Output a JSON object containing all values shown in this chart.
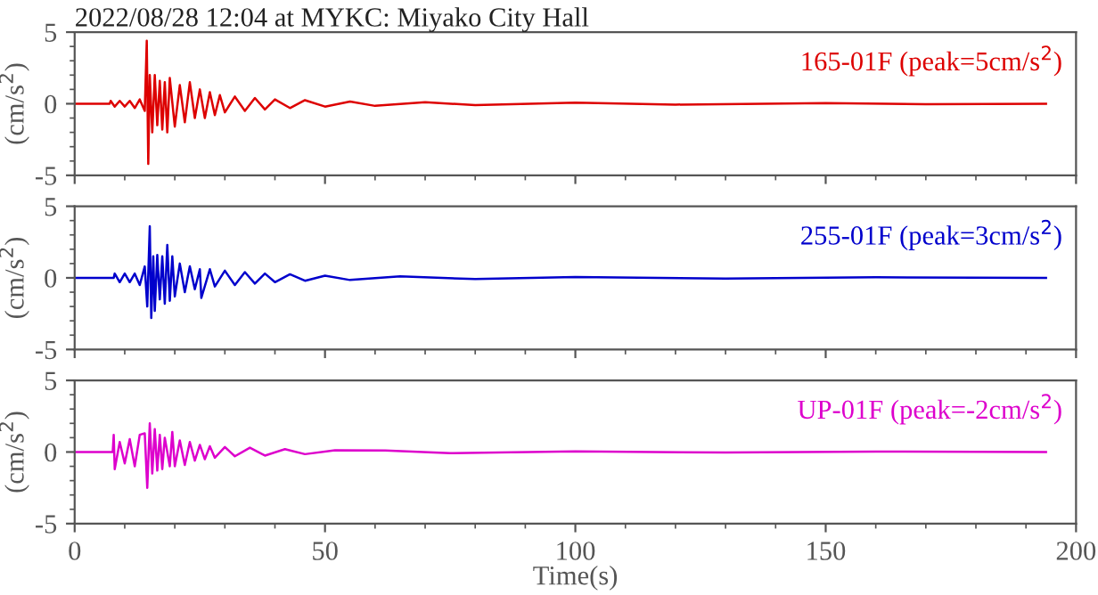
{
  "chart_data": [
    {
      "type": "line",
      "title": "2022/08/28 12:04 at MYKC: Miyako City Hall",
      "ylabel": "(cm/s$^{2}$)",
      "xlim": [
        0,
        200
      ],
      "xticks": [
        0,
        50,
        100,
        150,
        200
      ],
      "ylim": [
        -5,
        5
      ],
      "yticks": [
        -5,
        0,
        5
      ],
      "tick_labels": "y",
      "legend": "top right",
      "marker": "none",
      "line_style": "solid",
      "series": [
        {
          "name": "165-01F (peak=5cm/s$^{2}$)",
          "color": "#dd0000",
          "x": [
            0,
            7,
            7.2,
            8,
            9,
            10,
            11,
            12,
            13,
            14,
            14.4,
            14.7,
            15,
            15.5,
            16,
            16.5,
            17,
            17.5,
            18,
            18.5,
            19,
            20,
            21,
            22,
            23,
            24,
            25,
            26,
            27,
            28,
            29,
            30,
            32,
            34,
            36,
            38,
            40,
            43,
            46,
            50,
            55,
            60,
            70,
            80,
            100,
            120,
            150,
            170,
            194
          ],
          "values": [
            0,
            0,
            0.2,
            -0.2,
            0.2,
            -0.2,
            0.2,
            -0.3,
            0.3,
            -0.5,
            4.4,
            -4.2,
            2.0,
            -2.0,
            2.0,
            -1.5,
            1.6,
            -1.8,
            1.5,
            -2.0,
            1.8,
            -1.6,
            1.3,
            -1.3,
            1.5,
            -1.0,
            1.0,
            -1.0,
            0.8,
            -0.8,
            0.6,
            -0.6,
            0.5,
            -0.5,
            0.4,
            -0.4,
            0.3,
            -0.3,
            0.25,
            -0.2,
            0.15,
            -0.15,
            0.1,
            -0.1,
            0.08,
            -0.06,
            0.05,
            -0.04,
            0
          ]
        }
      ]
    },
    {
      "type": "line",
      "ylabel": "(cm/s$^{2}$)",
      "xlim": [
        0,
        200
      ],
      "xticks": [
        0,
        50,
        100,
        150,
        200
      ],
      "ylim": [
        -5,
        5
      ],
      "yticks": [
        -5,
        0,
        5
      ],
      "tick_labels": "y",
      "legend": "top right",
      "marker": "none",
      "line_style": "solid",
      "series": [
        {
          "name": "255-01F (peak=3cm/s$^{2}$)",
          "color": "#0000cc",
          "x": [
            0,
            7.8,
            8,
            9,
            10,
            11,
            12,
            13,
            14,
            14.5,
            15,
            15.3,
            15.7,
            16,
            16.5,
            17,
            17.5,
            18,
            18.5,
            19,
            19.5,
            20,
            21,
            22,
            23,
            24,
            25,
            25.3,
            27,
            28,
            30,
            32,
            34,
            36,
            38,
            40,
            43,
            46,
            50,
            55,
            65,
            80,
            100,
            130,
            160,
            194
          ],
          "values": [
            0,
            0,
            0.3,
            -0.3,
            0.3,
            -0.3,
            0.3,
            -0.5,
            0.8,
            -2.0,
            3.6,
            -2.8,
            1.5,
            -2.3,
            1.6,
            -1.5,
            1.5,
            -1.8,
            2.3,
            -1.6,
            1.5,
            -1.3,
            1.0,
            -1.0,
            0.8,
            -0.8,
            0.6,
            -1.4,
            0.6,
            -0.6,
            0.5,
            -0.5,
            0.4,
            -0.4,
            0.3,
            -0.3,
            0.25,
            -0.2,
            0.15,
            -0.15,
            0.1,
            -0.08,
            0.06,
            -0.05,
            0.04,
            0
          ]
        }
      ]
    },
    {
      "type": "line",
      "ylabel": "(cm/s$^{2}$)",
      "xlabel": "Time(s)",
      "xlim": [
        0,
        200
      ],
      "xticks": [
        0,
        50,
        100,
        150,
        200
      ],
      "ylim": [
        -5,
        5
      ],
      "yticks": [
        -5,
        0,
        5
      ],
      "legend": "top right",
      "marker": "none",
      "line_style": "solid",
      "series": [
        {
          "name": "UP-01F (peak=-2cm/s$^{2}$)",
          "color": "#dd00cc",
          "x": [
            0,
            7.6,
            7.8,
            8,
            9,
            10,
            11,
            12,
            13,
            14,
            14.5,
            15,
            15.5,
            16,
            16.5,
            17,
            17.5,
            18,
            19,
            19.5,
            20,
            21,
            22,
            23,
            24,
            25,
            26,
            27,
            28,
            30,
            32,
            35,
            38,
            42,
            46,
            52,
            62,
            75,
            100,
            130,
            160,
            194
          ],
          "values": [
            0,
            0,
            1.2,
            -1.2,
            0.7,
            -0.8,
            0.9,
            -1.0,
            1.2,
            1.3,
            -2.5,
            2.0,
            -1.5,
            1.6,
            -1.3,
            1.2,
            -1.2,
            1.0,
            -1.0,
            1.4,
            -1.0,
            0.8,
            -0.9,
            0.7,
            -0.6,
            0.5,
            -0.5,
            0.4,
            -0.4,
            0.35,
            -0.3,
            0.3,
            -0.25,
            0.2,
            -0.15,
            0.12,
            0.1,
            -0.08,
            0.05,
            -0.04,
            0.03,
            0
          ]
        }
      ]
    }
  ]
}
